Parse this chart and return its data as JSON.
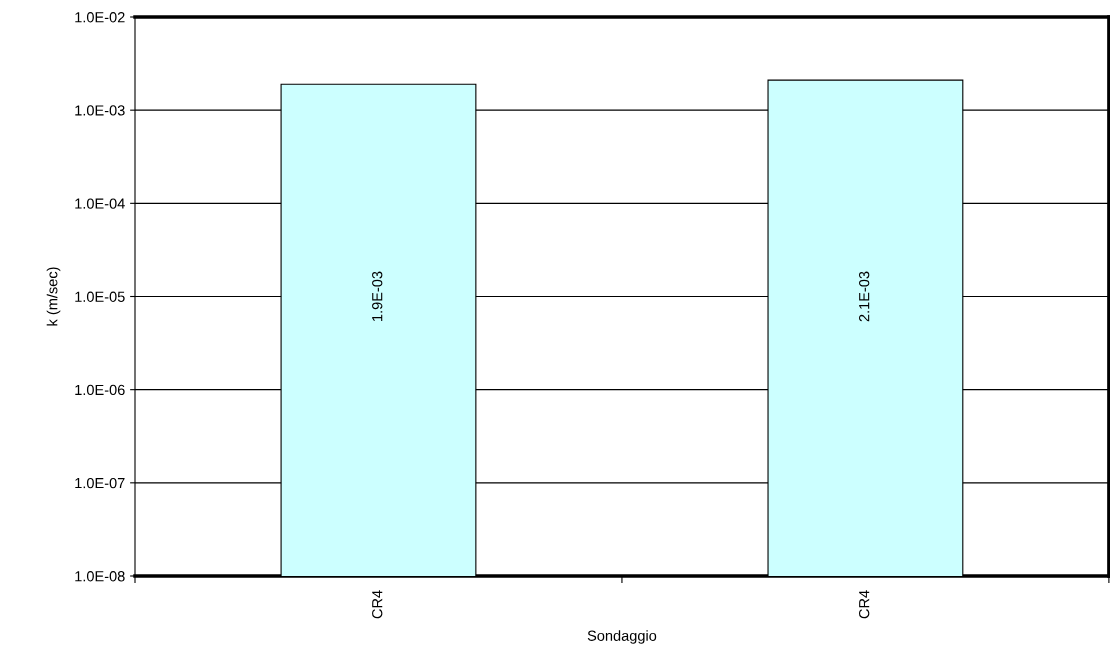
{
  "chart_data": {
    "type": "bar",
    "xlabel": "Sondaggio",
    "ylabel": "k (m/sec)",
    "categories": [
      "CR4",
      "CR4"
    ],
    "values": [
      0.0019,
      0.0021
    ],
    "value_labels": [
      "1.9E-03",
      "2.1E-03"
    ],
    "color": "#ccffff",
    "log": true,
    "ylim": [
      1e-08,
      0.01
    ],
    "yticks": [
      {
        "value": 1e-08,
        "label": "1.0E-08"
      },
      {
        "value": 1e-07,
        "label": "1.0E-07"
      },
      {
        "value": 1e-06,
        "label": "1.0E-06"
      },
      {
        "value": 1e-05,
        "label": "1.0E-05"
      },
      {
        "value": 0.0001,
        "label": "1.0E-04"
      },
      {
        "value": 0.001,
        "label": "1.0E-03"
      },
      {
        "value": 0.01,
        "label": "1.0E-02"
      }
    ],
    "grid": "y",
    "legend": false
  }
}
